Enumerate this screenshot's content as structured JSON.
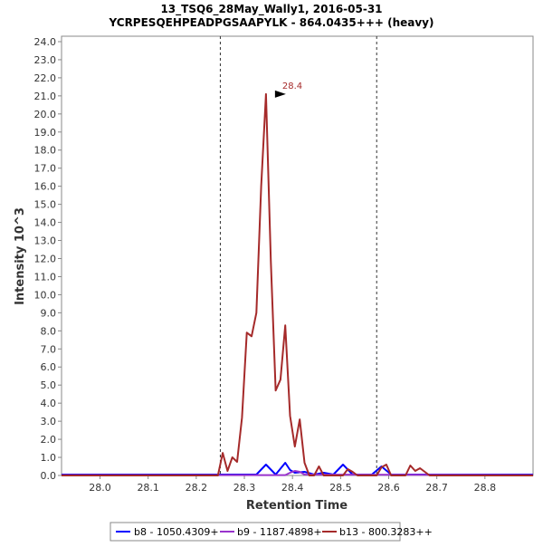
{
  "chart_data": {
    "type": "line",
    "title": "13_TSQ6_28May_Wally1, 2016-05-31",
    "subtitle": "YCRPESQEHPEADPGSAAPYLK - 864.0435+++ (heavy)",
    "xlabel": "Retention Time",
    "ylabel": "Intensity 10^3",
    "xlim": [
      27.92,
      28.9
    ],
    "ylim": [
      0,
      24.3
    ],
    "x_ticks": [
      "28.0",
      "28.1",
      "28.2",
      "28.3",
      "28.4",
      "28.5",
      "28.6",
      "28.7",
      "28.8"
    ],
    "y_ticks": [
      "0.0",
      "1.0",
      "2.0",
      "3.0",
      "4.0",
      "5.0",
      "6.0",
      "7.0",
      "8.0",
      "9.0",
      "10.0",
      "11.0",
      "12.0",
      "13.0",
      "14.0",
      "15.0",
      "16.0",
      "17.0",
      "18.0",
      "19.0",
      "20.0",
      "21.0",
      "22.0",
      "23.0",
      "24.0"
    ],
    "boundaries": [
      28.25,
      28.575
    ],
    "peak_annotation": {
      "x": 28.39,
      "y": 21.1,
      "label": "28.4"
    },
    "series": [
      {
        "name": "b8 - 1050.4309+",
        "color": "#0000ff",
        "x": [
          27.92,
          28.325,
          28.345,
          28.365,
          28.385,
          28.395,
          28.405,
          28.425,
          28.445,
          28.465,
          28.485,
          28.505,
          28.525,
          28.545,
          28.565,
          28.585,
          28.605,
          28.625,
          28.645,
          28.9
        ],
        "y": [
          0.05,
          0.05,
          0.6,
          0.05,
          0.7,
          0.3,
          0.15,
          0.2,
          0.05,
          0.15,
          0.05,
          0.6,
          0.05,
          0.05,
          0.05,
          0.5,
          0.05,
          0.05,
          0.05,
          0.05
        ]
      },
      {
        "name": "b9 - 1187.4898+",
        "color": "#9933cc",
        "x": [
          27.92,
          28.385,
          28.395,
          28.405,
          28.415,
          28.425,
          28.9
        ],
        "y": [
          0.02,
          0.02,
          0.15,
          0.25,
          0.2,
          0.05,
          0.02
        ]
      },
      {
        "name": "b13 - 800.3283++",
        "color": "#a52a2a",
        "x": [
          27.92,
          28.245,
          28.255,
          28.265,
          28.275,
          28.285,
          28.295,
          28.305,
          28.315,
          28.325,
          28.335,
          28.345,
          28.355,
          28.365,
          28.375,
          28.385,
          28.395,
          28.405,
          28.415,
          28.425,
          28.435,
          28.445,
          28.455,
          28.465,
          28.475,
          28.485,
          28.495,
          28.505,
          28.515,
          28.525,
          28.535,
          28.545,
          28.555,
          28.565,
          28.575,
          28.585,
          28.595,
          28.605,
          28.615,
          28.625,
          28.635,
          28.645,
          28.655,
          28.665,
          28.675,
          28.685,
          28.695,
          28.705,
          28.715,
          28.725,
          28.735,
          28.745,
          28.755,
          28.765,
          28.775,
          28.785,
          28.795,
          28.805,
          28.815,
          28.9
        ],
        "y": [
          0.0,
          0.0,
          1.25,
          0.25,
          1.0,
          0.75,
          3.2,
          7.9,
          7.7,
          9.0,
          16.0,
          21.1,
          11.8,
          4.7,
          5.3,
          8.3,
          3.3,
          1.6,
          3.1,
          0.7,
          0.0,
          0.0,
          0.5,
          0.0,
          0.0,
          0.0,
          0.0,
          0.0,
          0.35,
          0.2,
          0.0,
          0.0,
          0.0,
          0.0,
          0.0,
          0.45,
          0.6,
          0.0,
          0.0,
          0.0,
          0.0,
          0.55,
          0.25,
          0.4,
          0.2,
          0.0,
          0.0,
          0.0,
          0.0,
          0.0,
          0.0,
          0.0,
          0.0,
          0.0,
          0.0,
          0.0,
          0.0,
          0.0,
          0.0,
          0.0
        ]
      }
    ],
    "legend": [
      "b8 - 1050.4309+",
      "b9 - 1187.4898+",
      "b13 - 800.3283++"
    ]
  }
}
